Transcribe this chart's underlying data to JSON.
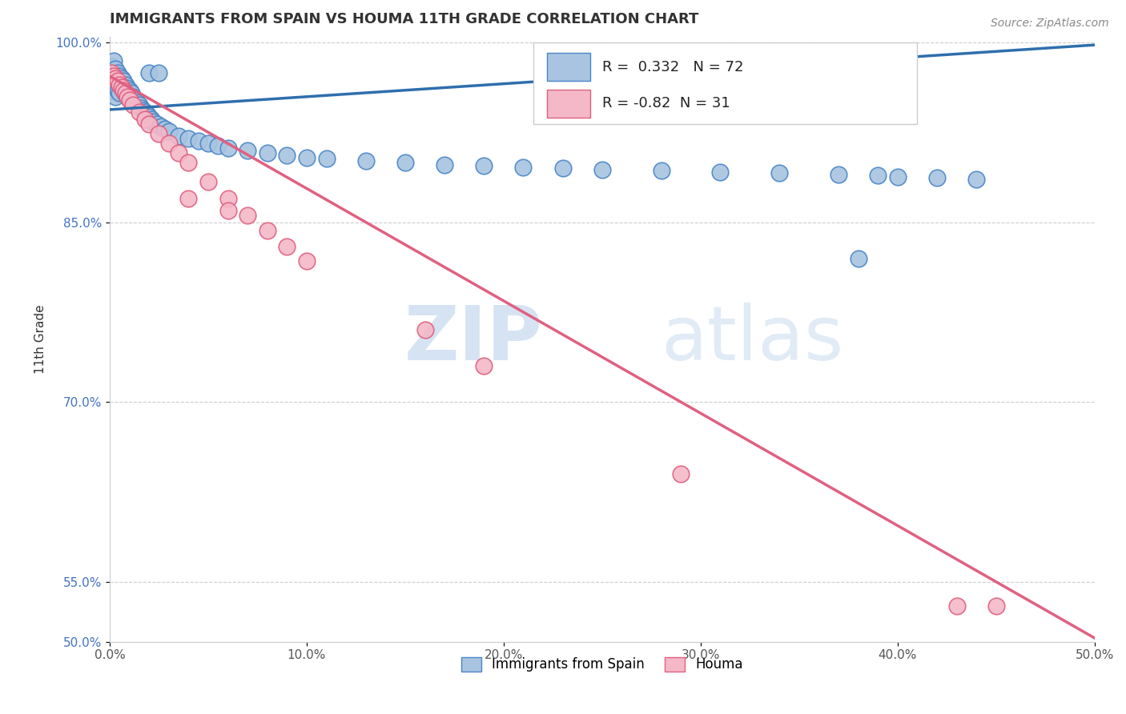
{
  "title": "IMMIGRANTS FROM SPAIN VS HOUMA 11TH GRADE CORRELATION CHART",
  "source_text": "Source: ZipAtlas.com",
  "ylabel": "11th Grade",
  "xlim": [
    0.0,
    0.5
  ],
  "ylim": [
    0.5,
    1.005
  ],
  "xtick_labels": [
    "0.0%",
    "10.0%",
    "20.0%",
    "30.0%",
    "40.0%",
    "50.0%"
  ],
  "xtick_values": [
    0.0,
    0.1,
    0.2,
    0.3,
    0.4,
    0.5
  ],
  "ytick_labels": [
    "50.0%",
    "55.0%",
    "70.0%",
    "85.0%",
    "100.0%"
  ],
  "ytick_values": [
    0.5,
    0.55,
    0.7,
    0.85,
    1.0
  ],
  "blue_color": "#a8c4e0",
  "blue_edge_color": "#4a86c8",
  "pink_color": "#f4b8c8",
  "pink_edge_color": "#e06080",
  "blue_line_color": "#2e6fad",
  "pink_line_color": "#e06080",
  "R_blue": 0.332,
  "N_blue": 72,
  "R_pink": -0.82,
  "N_pink": 31,
  "legend_label_blue": "Immigrants from Spain",
  "legend_label_pink": "Houma",
  "watermark_line1": "ZIP",
  "watermark_line2": "atlas",
  "blue_line_x0": 0.0,
  "blue_line_y0": 0.944,
  "blue_line_x1": 0.5,
  "blue_line_y1": 0.998,
  "pink_line_x0": 0.0,
  "pink_line_y0": 0.972,
  "pink_line_x1": 0.5,
  "pink_line_y1": 0.503,
  "blue_x": [
    0.001,
    0.001,
    0.001,
    0.002,
    0.002,
    0.002,
    0.002,
    0.003,
    0.003,
    0.003,
    0.003,
    0.004,
    0.004,
    0.004,
    0.005,
    0.005,
    0.005,
    0.006,
    0.006,
    0.007,
    0.007,
    0.008,
    0.008,
    0.009,
    0.009,
    0.01,
    0.01,
    0.011,
    0.012,
    0.013,
    0.014,
    0.015,
    0.016,
    0.017,
    0.018,
    0.019,
    0.02,
    0.021,
    0.022,
    0.024,
    0.026,
    0.028,
    0.03,
    0.035,
    0.04,
    0.045,
    0.05,
    0.055,
    0.06,
    0.07,
    0.08,
    0.09,
    0.1,
    0.11,
    0.13,
    0.15,
    0.17,
    0.19,
    0.21,
    0.23,
    0.25,
    0.28,
    0.31,
    0.34,
    0.37,
    0.38,
    0.39,
    0.4,
    0.42,
    0.44,
    0.02,
    0.025
  ],
  "blue_y": [
    0.98,
    0.972,
    0.965,
    0.985,
    0.975,
    0.968,
    0.96,
    0.978,
    0.97,
    0.963,
    0.955,
    0.975,
    0.968,
    0.96,
    0.972,
    0.965,
    0.958,
    0.97,
    0.962,
    0.968,
    0.96,
    0.965,
    0.957,
    0.962,
    0.955,
    0.96,
    0.952,
    0.958,
    0.955,
    0.952,
    0.95,
    0.948,
    0.945,
    0.943,
    0.942,
    0.94,
    0.938,
    0.936,
    0.934,
    0.932,
    0.93,
    0.928,
    0.926,
    0.922,
    0.92,
    0.918,
    0.916,
    0.914,
    0.912,
    0.91,
    0.908,
    0.906,
    0.904,
    0.903,
    0.901,
    0.9,
    0.898,
    0.897,
    0.896,
    0.895,
    0.894,
    0.893,
    0.892,
    0.891,
    0.89,
    0.82,
    0.889,
    0.888,
    0.887,
    0.886,
    0.975,
    0.975
  ],
  "pink_x": [
    0.001,
    0.002,
    0.003,
    0.004,
    0.005,
    0.006,
    0.007,
    0.008,
    0.009,
    0.01,
    0.012,
    0.015,
    0.018,
    0.02,
    0.025,
    0.03,
    0.035,
    0.04,
    0.05,
    0.06,
    0.07,
    0.08,
    0.09,
    0.1,
    0.04,
    0.06,
    0.16,
    0.19,
    0.29,
    0.43,
    0.45
  ],
  "pink_y": [
    0.975,
    0.972,
    0.97,
    0.968,
    0.965,
    0.963,
    0.96,
    0.958,
    0.955,
    0.952,
    0.948,
    0.942,
    0.936,
    0.932,
    0.924,
    0.916,
    0.908,
    0.9,
    0.884,
    0.87,
    0.856,
    0.843,
    0.83,
    0.818,
    0.87,
    0.86,
    0.76,
    0.73,
    0.64,
    0.53,
    0.53
  ]
}
